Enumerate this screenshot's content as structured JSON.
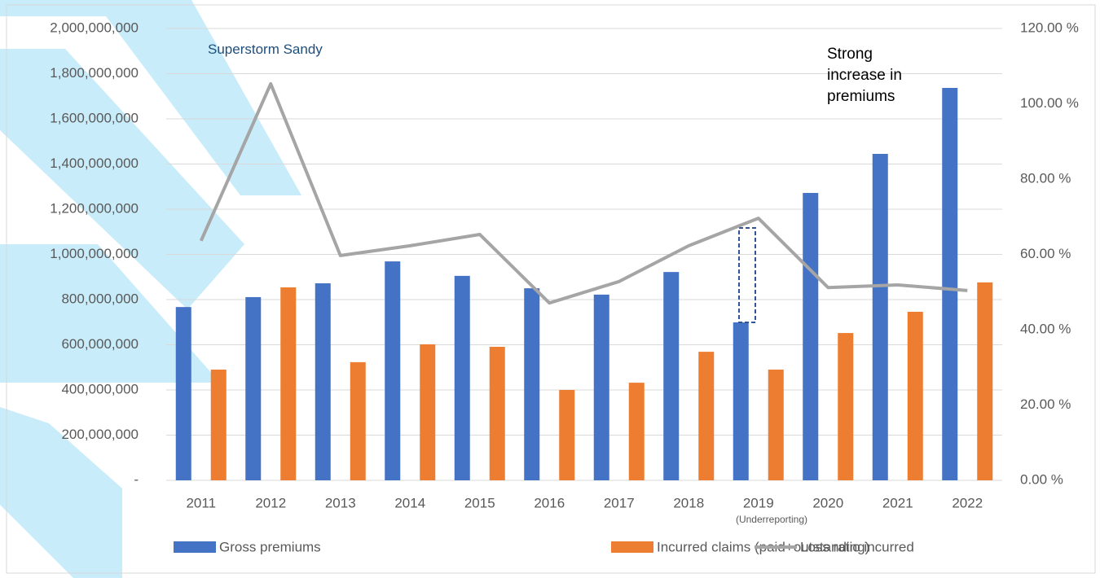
{
  "chart_data": {
    "type": "bar",
    "categories": [
      "2011",
      "2012",
      "2013",
      "2014",
      "2015",
      "2016",
      "2017",
      "2018",
      "2019",
      "2020",
      "2021",
      "2022"
    ],
    "series": [
      {
        "name": "Gross premiums",
        "color": "#4472c4",
        "values": [
          767000000,
          811000000,
          872000000,
          969000000,
          905000000,
          850000000,
          822000000,
          922000000,
          699000000,
          1272000000,
          1445000000,
          1737000000
        ]
      },
      {
        "name": "Incurred claims (paid+outstanding)",
        "color": "#ed7d31",
        "values": [
          490000000,
          854000000,
          523000000,
          602000000,
          591000000,
          400000000,
          432000000,
          569000000,
          490000000,
          652000000,
          746000000,
          876000000
        ]
      },
      {
        "name": "Loss ratio incurred",
        "color": "#a5a5a5",
        "type": "line",
        "axis": "y2",
        "values": [
          63.6,
          105.3,
          59.7,
          62.3,
          65.3,
          47.1,
          52.8,
          62.3,
          69.6,
          51.2,
          51.9,
          50.4
        ]
      }
    ],
    "ylim": [
      0,
      2000000000
    ],
    "yticks": [
      {
        "value": 0,
        "label": "-"
      },
      {
        "value": 200000000,
        "label": "200,000,000"
      },
      {
        "value": 400000000,
        "label": "400,000,000"
      },
      {
        "value": 600000000,
        "label": "600,000,000"
      },
      {
        "value": 800000000,
        "label": "800,000,000"
      },
      {
        "value": 1000000000,
        "label": "1,000,000,000"
      },
      {
        "value": 1200000000,
        "label": "1,200,000,000"
      },
      {
        "value": 1400000000,
        "label": "1,400,000,000"
      },
      {
        "value": 1600000000,
        "label": "1,600,000,000"
      },
      {
        "value": 1800000000,
        "label": "1,800,000,000"
      },
      {
        "value": 2000000000,
        "label": "2,000,000,000"
      }
    ],
    "y2lim": [
      0,
      120
    ],
    "y2ticks": [
      {
        "value": 0,
        "label": "0.00 %"
      },
      {
        "value": 20,
        "label": "20.00 %"
      },
      {
        "value": 40,
        "label": "40.00 %"
      },
      {
        "value": 60,
        "label": "60.00 %"
      },
      {
        "value": 80,
        "label": "80.00 %"
      },
      {
        "value": 100,
        "label": "100.00 %"
      },
      {
        "value": 120,
        "label": "120.00 %"
      }
    ],
    "grid": true,
    "legend": "bottom",
    "annotations": [
      "Superstorm Sandy",
      "Strong increase in premiums",
      "(Underreporting)"
    ]
  }
}
